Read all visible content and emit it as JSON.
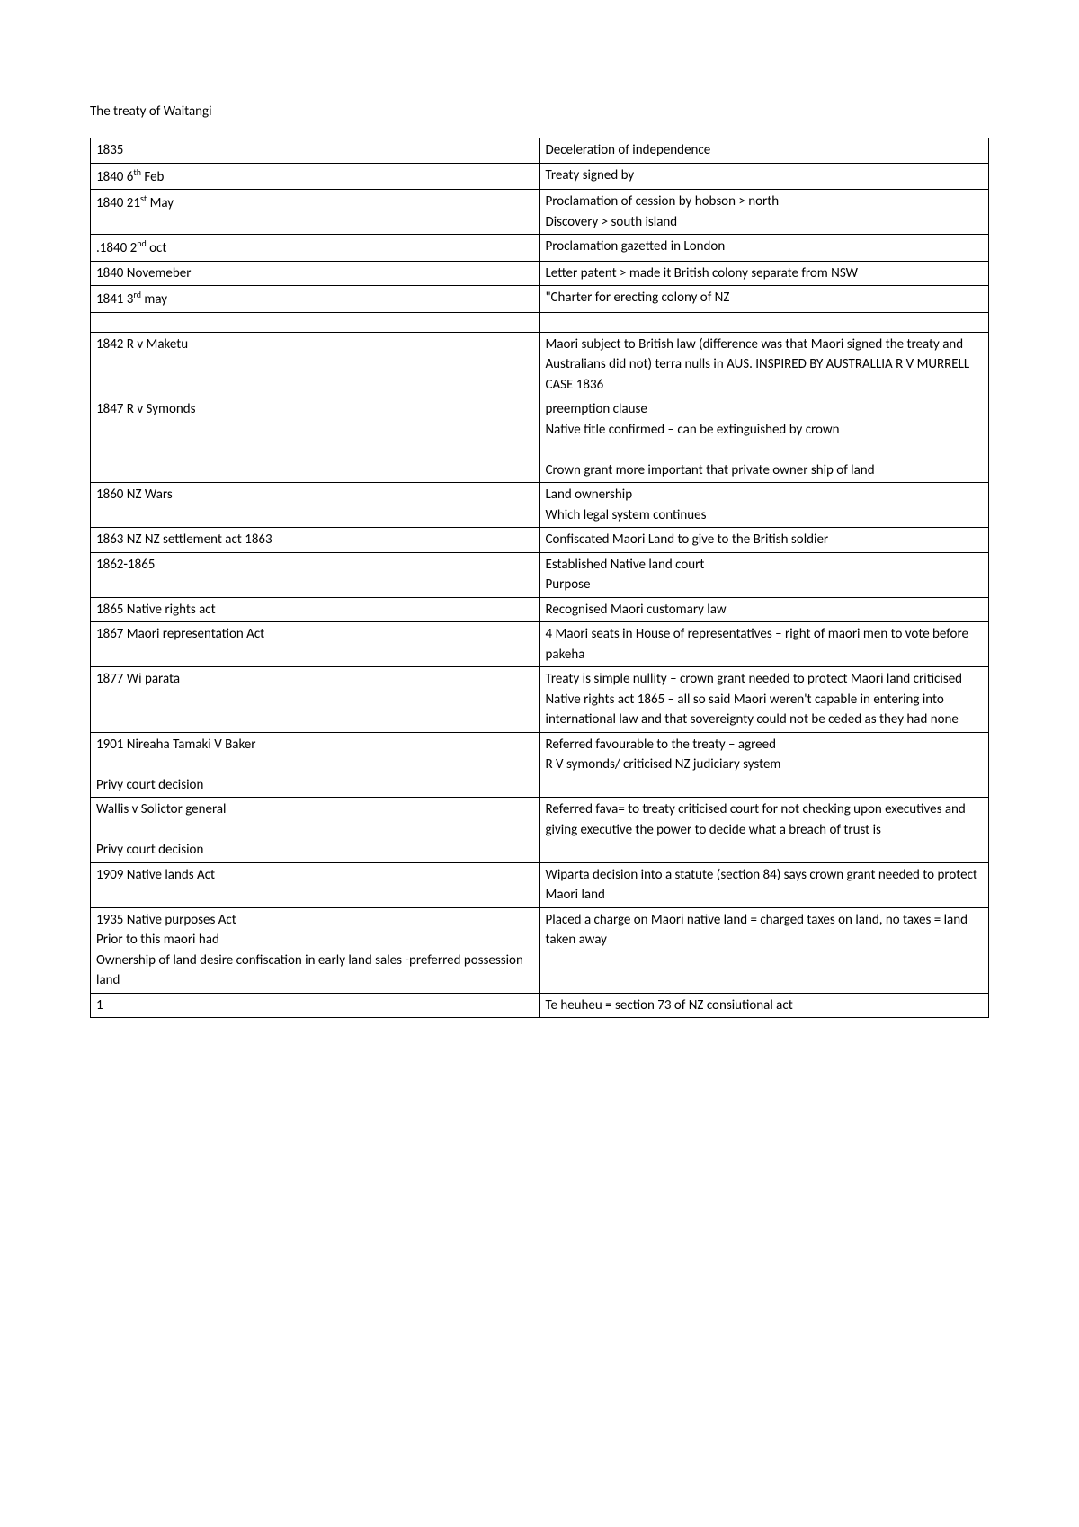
{
  "title": "The treaty of Waitangi",
  "table": {
    "border_color": "#000000",
    "background_color": "#ffffff",
    "text_color": "#000000",
    "font_size": 15,
    "rows": [
      {
        "left": "1835",
        "right": "Deceleration of independence"
      },
      {
        "left_html": "1840 6<span class=\"sup\">th</span> Feb",
        "right": "Treaty signed by"
      },
      {
        "left_html": "1840 21<span class=\"sup\">st</span> May",
        "right": "Proclamation of cession by hobson > north\nDiscovery > south island"
      },
      {
        "left_html": ".1840 2<span class=\"sup\">nd</span> oct",
        "right": "Proclamation gazetted in London"
      },
      {
        "left": "1840 Novemeber",
        "right": "Letter patent > made it British colony separate from NSW"
      },
      {
        "left_html": "1841 3<span class=\"sup\">rd</span> may",
        "right": "\"Charter for erecting colony of NZ"
      },
      {
        "empty": true
      },
      {
        "left": "1842 R v Maketu",
        "right": "Maori subject to British law (difference was that Maori signed the treaty and Australians did not) terra nulls in AUS. INSPIRED BY AUSTRALLIA R V MURRELL CASE 1836"
      },
      {
        "left": "1847 R v Symonds",
        "right": "preemption clause\nNative title confirmed – can be extinguished by crown\n\nCrown grant more important that private owner ship of land\n"
      },
      {
        "left": "1860 NZ Wars",
        "right": "Land ownership\nWhich legal system continues"
      },
      {
        "left": "1863 NZ NZ settlement act 1863",
        "right": "Confiscated Maori Land to give to the British soldier"
      },
      {
        "left": "1862-1865",
        "right": "Established Native land court\nPurpose"
      },
      {
        "left": "1865 Native rights act",
        "right": "Recognised  Maori customary law"
      },
      {
        "left": "1867 Maori representation Act",
        "right": "4 Maori seats in House of representatives – right of maori men to vote before pakeha"
      },
      {
        "left": "1877 Wi parata",
        "right": "Treaty is simple nullity – crown grant needed to protect Maori land criticised Native rights act 1865 – all so said Maori weren't capable in entering into international law and that sovereignty could not be ceded as they had none"
      },
      {
        "left": "1901 Nireaha Tamaki V Baker\n\nPrivy court decision",
        "right": "Referred favourable to the treaty – agreed\nR V symonds/ criticised NZ judiciary system"
      },
      {
        "left": "Wallis v Solictor general\n\nPrivy court decision",
        "right": "Referred fava= to treaty criticised court for not checking upon executives and giving executive the power to decide what a breach of trust is\n"
      },
      {
        "left": "1909  Native lands Act",
        "right": "Wiparta decision into a statute (section 84) says crown grant needed to protect Maori land"
      },
      {
        "left": "1935 Native purposes Act\nPrior to this maori had\nOwnership of land desire confiscation in early land sales -preferred possession land",
        "right": "Placed a charge on Maori native land = charged taxes on land, no taxes = land taken away"
      },
      {
        "left": "1",
        "right": "Te heuheu = section 73 of NZ consiutional act"
      }
    ]
  }
}
